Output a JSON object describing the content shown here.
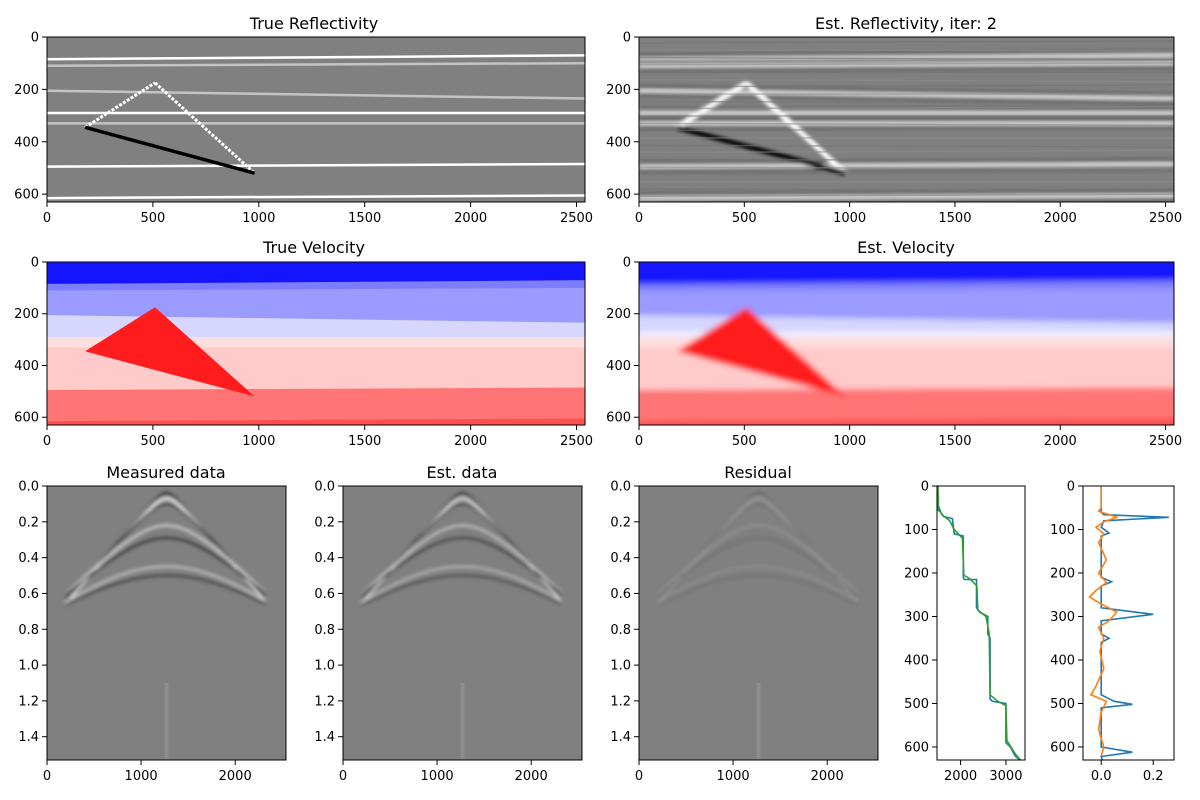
{
  "chart_data": [
    {
      "type": "heatmap",
      "title": "True Reflectivity",
      "colormap": "gray",
      "xlim": [
        0,
        2540
      ],
      "ylim": [
        630,
        0
      ],
      "xticks": [
        "0",
        "500",
        "1000",
        "1500",
        "2000",
        "2500"
      ],
      "yticks": [
        "0",
        "200",
        "400",
        "600"
      ],
      "reflectors": [
        {
          "depth_left": 85,
          "depth_right": 70,
          "polarity": 1
        },
        {
          "depth_left": 110,
          "depth_right": 100,
          "polarity": 0.6
        },
        {
          "depth_left": 205,
          "depth_right": 235,
          "polarity": 0.6
        },
        {
          "depth_left": 290,
          "depth_right": 290,
          "polarity": 1
        },
        {
          "depth_left": 330,
          "depth_right": 330,
          "polarity": 0.6
        },
        {
          "depth_left": 495,
          "depth_right": 485,
          "polarity": 1
        },
        {
          "depth_left": 615,
          "depth_right": 605,
          "polarity": 1
        }
      ],
      "wedge": {
        "apex": [
          510,
          175
        ],
        "left": [
          180,
          345
        ],
        "right": [
          980,
          520
        ]
      }
    },
    {
      "type": "heatmap",
      "title": "Est. Reflectivity, iter: 2",
      "colormap": "gray",
      "xlim": [
        0,
        2540
      ],
      "ylim": [
        630,
        0
      ],
      "xticks": [
        "0",
        "500",
        "1000",
        "1500",
        "2000",
        "2500"
      ],
      "yticks": [
        "0",
        "200",
        "400",
        "600"
      ]
    },
    {
      "type": "heatmap",
      "title": "True Velocity",
      "colormap": "bwr",
      "xlim": [
        0,
        2540
      ],
      "ylim": [
        630,
        0
      ],
      "xticks": [
        "0",
        "500",
        "1000",
        "1500",
        "2000",
        "2500"
      ],
      "yticks": [
        "0",
        "200",
        "400",
        "600"
      ],
      "layers": [
        {
          "top": 0,
          "color": "#1414ff"
        },
        {
          "top": 80,
          "color": "#7d7dff"
        },
        {
          "top": 105,
          "color": "#9a9aff"
        },
        {
          "top": 205,
          "color": "#d6d6ff"
        },
        {
          "top": 285,
          "color": "#ffdede"
        },
        {
          "top": 330,
          "color": "#ffcaca"
        },
        {
          "top": 490,
          "color": "#ff7474"
        },
        {
          "top": 610,
          "color": "#ff5050"
        }
      ],
      "wedge_color": "#ff1c1c"
    },
    {
      "type": "heatmap",
      "title": "Est. Velocity",
      "colormap": "bwr",
      "xlim": [
        0,
        2540
      ],
      "ylim": [
        630,
        0
      ],
      "xticks": [
        "0",
        "500",
        "1000",
        "1500",
        "2000",
        "2500"
      ],
      "yticks": [
        "0",
        "200",
        "400",
        "600"
      ]
    },
    {
      "type": "heatmap",
      "title": "Measured data",
      "colormap": "gray",
      "xlim": [
        0,
        2540
      ],
      "ylim": [
        1.53,
        0
      ],
      "xticks": [
        "0",
        "1000",
        "2000"
      ],
      "yticks": [
        "0.0",
        "0.2",
        "0.4",
        "0.6",
        "0.8",
        "1.0",
        "1.2",
        "1.4"
      ],
      "source_x": 1270
    },
    {
      "type": "heatmap",
      "title": "Est. data",
      "colormap": "gray",
      "xlim": [
        0,
        2540
      ],
      "ylim": [
        1.53,
        0
      ],
      "xticks": [
        "0",
        "1000",
        "2000"
      ],
      "yticks": [
        "0.0",
        "0.2",
        "0.4",
        "0.6",
        "0.8",
        "1.0",
        "1.2",
        "1.4"
      ],
      "source_x": 1270
    },
    {
      "type": "heatmap",
      "title": "Residual",
      "colormap": "gray",
      "xlim": [
        0,
        2540
      ],
      "ylim": [
        1.53,
        0
      ],
      "xticks": [
        "0",
        "1000",
        "2000"
      ],
      "yticks": [
        "0.0",
        "0.2",
        "0.4",
        "0.6",
        "0.8",
        "1.0",
        "1.2",
        "1.4"
      ],
      "source_x": 1270
    },
    {
      "type": "line",
      "title": "",
      "xlim": [
        1480,
        3420
      ],
      "ylim": [
        630,
        0
      ],
      "xticks": [
        "2000",
        "3000"
      ],
      "yticks": [
        "0",
        "100",
        "200",
        "300",
        "400",
        "500",
        "600"
      ],
      "series": [
        {
          "color": "#1f77b4",
          "points": [
            [
              1500,
              0
            ],
            [
              1500,
              55
            ],
            [
              1560,
              60
            ],
            [
              1620,
              70
            ],
            [
              1820,
              75
            ],
            [
              1860,
              110
            ],
            [
              2060,
              115
            ],
            [
              2060,
              210
            ],
            [
              2080,
              215
            ],
            [
              2350,
              215
            ],
            [
              2350,
              280
            ],
            [
              2420,
              290
            ],
            [
              2600,
              300
            ],
            [
              2600,
              340
            ],
            [
              2650,
              350
            ],
            [
              2650,
              490
            ],
            [
              2700,
              495
            ],
            [
              3000,
              500
            ],
            [
              3000,
              590
            ],
            [
              3100,
              600
            ],
            [
              3200,
              620
            ],
            [
              3300,
              630
            ]
          ]
        },
        {
          "color": "#2ca02c",
          "points": [
            [
              1500,
              0
            ],
            [
              1510,
              45
            ],
            [
              1580,
              65
            ],
            [
              1760,
              80
            ],
            [
              1860,
              100
            ],
            [
              2040,
              120
            ],
            [
              2070,
              205
            ],
            [
              2200,
              213
            ],
            [
              2360,
              230
            ],
            [
              2380,
              285
            ],
            [
              2560,
              300
            ],
            [
              2630,
              340
            ],
            [
              2650,
              480
            ],
            [
              2820,
              495
            ],
            [
              3000,
              505
            ],
            [
              3020,
              585
            ],
            [
              3200,
              615
            ],
            [
              3320,
              630
            ]
          ]
        }
      ]
    },
    {
      "type": "line",
      "title": "",
      "xlim": [
        -0.07,
        0.28
      ],
      "ylim": [
        630,
        0
      ],
      "xticks": [
        "0.0",
        "0.2"
      ],
      "yticks": [
        "0",
        "100",
        "200",
        "300",
        "400",
        "500",
        "600"
      ],
      "series": [
        {
          "color": "#1f77b4",
          "points": [
            [
              0,
              0
            ],
            [
              0,
              60
            ],
            [
              0.01,
              66
            ],
            [
              0.26,
              72
            ],
            [
              0.01,
              80
            ],
            [
              0,
              95
            ],
            [
              0.03,
              108
            ],
            [
              0,
              115
            ],
            [
              0,
              210
            ],
            [
              0.04,
              220
            ],
            [
              0,
              230
            ],
            [
              0,
              280
            ],
            [
              0.2,
              295
            ],
            [
              0,
              310
            ],
            [
              0,
              340
            ],
            [
              0.03,
              350
            ],
            [
              0,
              360
            ],
            [
              0,
              480
            ],
            [
              0.05,
              495
            ],
            [
              0.12,
              502
            ],
            [
              0,
              510
            ],
            [
              0,
              600
            ],
            [
              0.12,
              612
            ],
            [
              0,
              622
            ],
            [
              0.005,
              630
            ]
          ]
        },
        {
          "color": "#ff7f0e",
          "points": [
            [
              0,
              0
            ],
            [
              0,
              50
            ],
            [
              -0.01,
              58
            ],
            [
              0.02,
              64
            ],
            [
              0.06,
              72
            ],
            [
              0.01,
              82
            ],
            [
              -0.02,
              95
            ],
            [
              0.01,
              110
            ],
            [
              -0.01,
              130
            ],
            [
              0.02,
              170
            ],
            [
              -0.01,
              200
            ],
            [
              0.02,
              222
            ],
            [
              -0.02,
              240
            ],
            [
              -0.045,
              255
            ],
            [
              -0.01,
              268
            ],
            [
              0.06,
              290
            ],
            [
              0.03,
              310
            ],
            [
              -0.01,
              325
            ],
            [
              0.01,
              350
            ],
            [
              -0.005,
              380
            ],
            [
              0.01,
              420
            ],
            [
              -0.02,
              460
            ],
            [
              -0.04,
              480
            ],
            [
              0.02,
              495
            ],
            [
              0,
              520
            ],
            [
              -0.01,
              560
            ],
            [
              0.01,
              600
            ],
            [
              0,
              620
            ]
          ]
        }
      ]
    }
  ]
}
